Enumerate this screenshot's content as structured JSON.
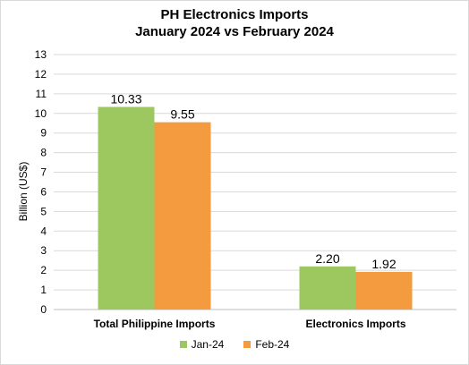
{
  "chart_data": {
    "type": "bar",
    "title_line1": "PH Electronics Imports",
    "title_line2": "January 2024 vs February 2024",
    "xlabel": "",
    "ylabel": "Billion (US$)",
    "ylim": [
      0,
      13
    ],
    "yticks": [
      "0",
      "1",
      "2",
      "3",
      "4",
      "5",
      "6",
      "7",
      "8",
      "9",
      "10",
      "11",
      "12",
      "13"
    ],
    "categories": [
      "Total Philippine Imports",
      "Electronics Imports"
    ],
    "series": [
      {
        "name": "Jan-24",
        "color": "#9dc85f",
        "values": [
          10.33,
          2.2
        ],
        "labels": [
          "10.33",
          "2.20"
        ]
      },
      {
        "name": "Feb-24",
        "color": "#f39b3e",
        "values": [
          9.55,
          1.92
        ],
        "labels": [
          "9.55",
          "1.92"
        ]
      }
    ],
    "grid": true,
    "legend_position": "bottom"
  }
}
